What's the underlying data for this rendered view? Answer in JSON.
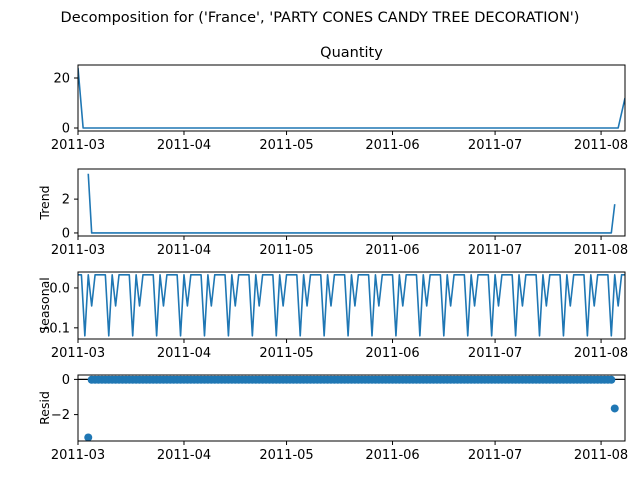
{
  "figure_title": "Decomposition for ('France', 'PARTY CONES CANDY TREE DECORATION')",
  "chart_data": [
    {
      "id": "observed",
      "type": "line",
      "title": "Quantity",
      "ylabel": "",
      "ylim": [
        -1.2,
        25.2
      ],
      "yticks": [
        0,
        20
      ],
      "ytick_labels": [
        "0",
        "20"
      ],
      "x_range_days": [
        0,
        160
      ],
      "xticks_days": [
        0,
        31,
        61,
        92,
        122,
        153
      ],
      "xtick_labels": [
        "2011-03",
        "2011-04",
        "2011-05",
        "2011-06",
        "2011-07",
        "2011-08"
      ],
      "zero_line": false,
      "points": [
        [
          0,
          24
        ],
        [
          1.5,
          0
        ],
        [
          158,
          0
        ],
        [
          160,
          12
        ]
      ]
    },
    {
      "id": "trend",
      "type": "line",
      "title": "",
      "ylabel": "Trend",
      "ylim": [
        -0.18,
        3.78
      ],
      "yticks": [
        0,
        2
      ],
      "ytick_labels": [
        "0",
        "2"
      ],
      "x_range_days": [
        0,
        160
      ],
      "xticks_days": [
        0,
        31,
        61,
        92,
        122,
        153
      ],
      "xtick_labels": [
        "2011-03",
        "2011-04",
        "2011-05",
        "2011-06",
        "2011-07",
        "2011-08"
      ],
      "zero_line": false,
      "points": [
        [
          3,
          3.5
        ],
        [
          4,
          0
        ],
        [
          156,
          0
        ],
        [
          157,
          1.7
        ]
      ]
    },
    {
      "id": "seasonal",
      "type": "line",
      "title": "",
      "ylabel": "Seasonal",
      "ylim": [
        -0.128,
        0.04
      ],
      "yticks": [
        0.0,
        -0.1
      ],
      "ytick_labels": [
        "0.0",
        "−0.1"
      ],
      "x_range_days": [
        0,
        160
      ],
      "xticks_days": [
        0,
        31,
        61,
        92,
        122,
        153
      ],
      "xtick_labels": [
        "2011-03",
        "2011-04",
        "2011-05",
        "2011-06",
        "2011-07",
        "2011-08"
      ],
      "zero_line": false,
      "period": 7,
      "pattern": [
        0.033,
        0.033,
        -0.12,
        0.033,
        -0.045,
        0.033,
        0.033
      ]
    },
    {
      "id": "resid",
      "type": "scatter",
      "title": "",
      "ylabel": "Resid",
      "ylim": [
        -3.5,
        0.25
      ],
      "yticks": [
        0,
        -2
      ],
      "ytick_labels": [
        "0",
        "−2"
      ],
      "x_range_days": [
        0,
        160
      ],
      "xticks_days": [
        0,
        31,
        61,
        92,
        122,
        153
      ],
      "xtick_labels": [
        "2011-03",
        "2011-04",
        "2011-05",
        "2011-06",
        "2011-07",
        "2011-08"
      ],
      "zero_line": true,
      "outliers": [
        [
          3,
          -3.3
        ],
        [
          157,
          -1.65
        ]
      ],
      "baseline_range": [
        4,
        156
      ],
      "baseline_value": -0.02
    }
  ]
}
